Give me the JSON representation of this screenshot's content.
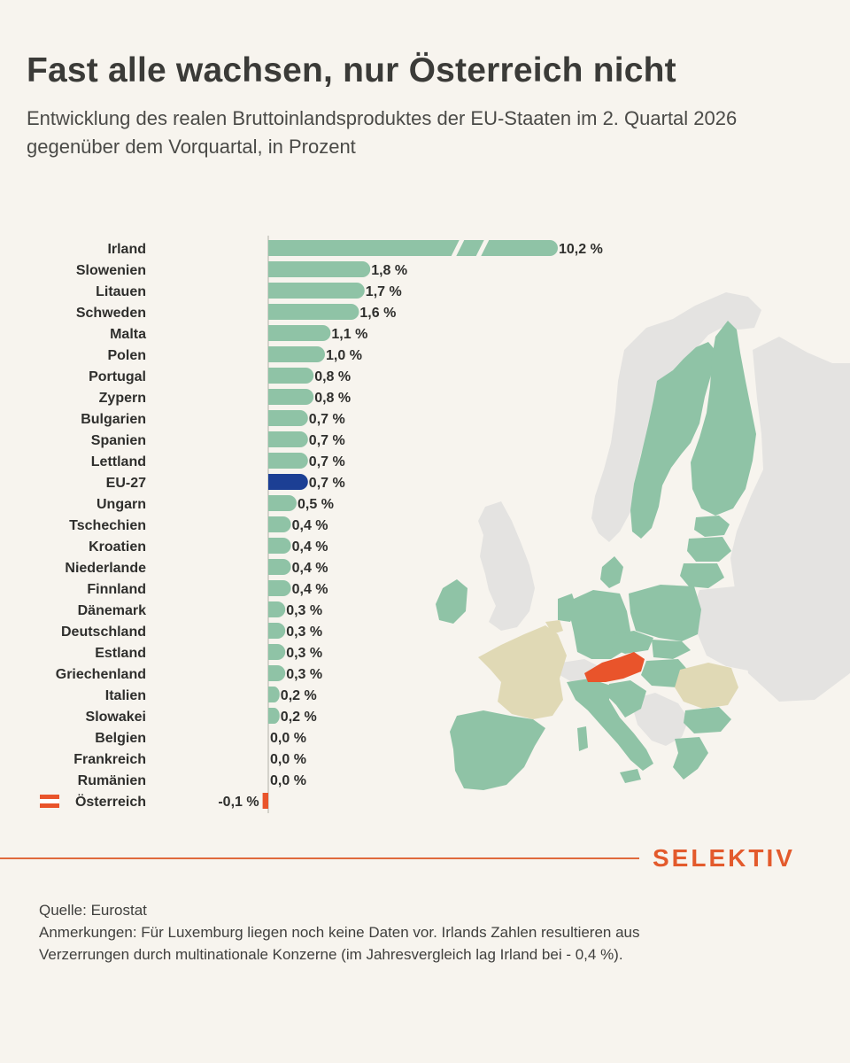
{
  "header": {
    "title": "Fast alle wachsen, nur Österreich nicht",
    "subtitle": "Entwicklung des realen Bruttoinlandsproduktes der EU-Staaten im 2. Quartal 2026 gegenüber dem Vorquartal, in Prozent"
  },
  "chart_data": {
    "type": "bar",
    "orientation": "horizontal",
    "title": "Fast alle wachsen, nur Österreich nicht",
    "subtitle": "Entwicklung des realen Bruttoinlandsproduktes der EU-Staaten im 2. Quartal 2026 gegenüber dem Vorquartal, in Prozent",
    "categories": [
      "Irland",
      "Slowenien",
      "Litauen",
      "Schweden",
      "Malta",
      "Polen",
      "Portugal",
      "Zypern",
      "Bulgarien",
      "Spanien",
      "Lettland",
      "EU-27",
      "Ungarn",
      "Tschechien",
      "Kroatien",
      "Niederlande",
      "Finnland",
      "Dänemark",
      "Deutschland",
      "Estland",
      "Griechenland",
      "Italien",
      "Slowakei",
      "Belgien",
      "Frankreich",
      "Rumänien",
      "Österreich"
    ],
    "values": [
      10.2,
      1.8,
      1.7,
      1.6,
      1.1,
      1.0,
      0.8,
      0.8,
      0.7,
      0.7,
      0.7,
      0.7,
      0.5,
      0.4,
      0.4,
      0.4,
      0.4,
      0.3,
      0.3,
      0.3,
      0.3,
      0.2,
      0.2,
      0.0,
      0.0,
      0.0,
      -0.1
    ],
    "value_labels": [
      "10,2 %",
      "1,8 %",
      "1,7 %",
      "1,6 %",
      "1,1 %",
      "1,0 %",
      "0,8 %",
      "0,8 %",
      "0,7 %",
      "0,7 %",
      "0,7 %",
      "0,7 %",
      "0,5 %",
      "0,4 %",
      "0,4 %",
      "0,4 %",
      "0,4 %",
      "0,3 %",
      "0,3 %",
      "0,3 %",
      "0,3 %",
      "0,2 %",
      "0,2 %",
      "0,0 %",
      "0,0 %",
      "0,0 %",
      "-0,1 %"
    ],
    "axis_break": "Irland",
    "highlight": {
      "EU-27": "eu_average",
      "Österreich": "negative"
    },
    "flag_label": "Österreich",
    "grid": false,
    "legend": "none",
    "colors": {
      "bar": "#8fc3a6",
      "eu_average": "#1c3f94",
      "negative": "#e9542b",
      "axis": "#c9c6bf"
    }
  },
  "map": {
    "colors": {
      "eu_growth": "#8fc3a6",
      "eu_stagnant": "#e0d9b5",
      "austria": "#e9542b",
      "non_eu": "#e4e3e1",
      "border": "#f7f4ee"
    },
    "stagnant_countries": [
      "Frankreich",
      "Rumänien",
      "Belgien"
    ],
    "highlight_country": "Österreich"
  },
  "branding": {
    "logo_text": "SELEKTIV",
    "rule_color": "#e06a3c",
    "logo_color": "#e35a2c"
  },
  "footer": {
    "source": "Quelle: Eurostat",
    "notes": "Anmerkungen: Für Luxemburg liegen noch keine Daten vor. Irlands Zahlen resultieren aus Verzerrungen durch multinationale Konzerne (im Jahresvergleich lag Irland bei - 0,4 %)."
  }
}
